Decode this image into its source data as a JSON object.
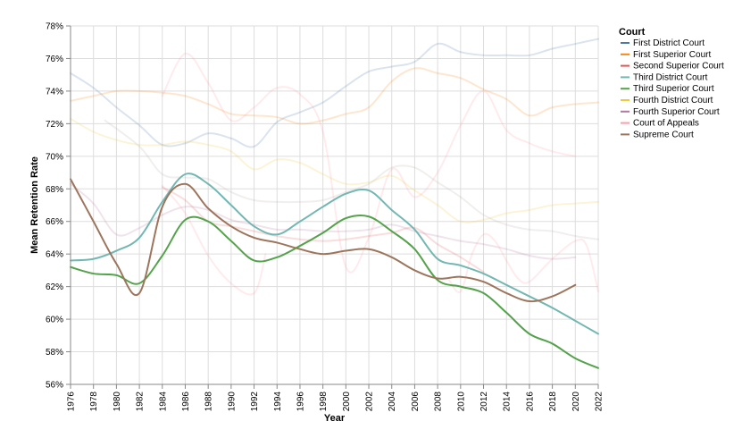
{
  "chart_data": {
    "type": "line",
    "xlabel": "Year",
    "ylabel": "Mean Retention Rate",
    "xlim": [
      1976,
      2022
    ],
    "ylim": [
      56,
      78
    ],
    "x_ticks": [
      1976,
      1978,
      1980,
      1982,
      1984,
      1986,
      1988,
      1990,
      1992,
      1994,
      1996,
      1998,
      2000,
      2002,
      2004,
      2006,
      2008,
      2010,
      2012,
      2014,
      2016,
      2018,
      2020,
      2022
    ],
    "y_ticks": [
      56,
      58,
      60,
      62,
      64,
      66,
      68,
      70,
      72,
      74,
      76,
      78
    ],
    "y_tick_labels": [
      "56%",
      "58%",
      "60%",
      "62%",
      "64%",
      "66%",
      "68%",
      "70%",
      "72%",
      "74%",
      "76%",
      "78%"
    ],
    "grid": true,
    "legend": {
      "title": "Court",
      "position": "right"
    },
    "series": [
      {
        "name": "First District Court",
        "color": "#4c78a8",
        "opacity": 0.2,
        "points": [
          [
            1976,
            75.1
          ],
          [
            1978,
            74.2
          ],
          [
            1980,
            73.0
          ],
          [
            1982,
            71.9
          ],
          [
            1984,
            70.7
          ],
          [
            1986,
            70.8
          ],
          [
            1988,
            71.4
          ],
          [
            1990,
            71.1
          ],
          [
            1992,
            70.6
          ],
          [
            1994,
            72.1
          ],
          [
            1996,
            72.7
          ],
          [
            1998,
            73.3
          ],
          [
            2000,
            74.3
          ],
          [
            2002,
            75.2
          ],
          [
            2004,
            75.5
          ],
          [
            2006,
            75.8
          ],
          [
            2008,
            76.9
          ],
          [
            2010,
            76.4
          ],
          [
            2012,
            76.2
          ],
          [
            2014,
            76.2
          ],
          [
            2016,
            76.2
          ],
          [
            2018,
            76.6
          ],
          [
            2020,
            76.9
          ],
          [
            2022,
            77.2
          ]
        ]
      },
      {
        "name": "First Superior Court",
        "color": "#f58518",
        "opacity": 0.2,
        "points": [
          [
            1976,
            73.4
          ],
          [
            1978,
            73.7
          ],
          [
            1980,
            74.0
          ],
          [
            1982,
            74.0
          ],
          [
            1984,
            73.9
          ],
          [
            1986,
            73.7
          ],
          [
            1988,
            73.2
          ],
          [
            1990,
            72.6
          ],
          [
            1992,
            72.5
          ],
          [
            1994,
            72.4
          ],
          [
            1996,
            72.0
          ],
          [
            1998,
            72.2
          ],
          [
            2000,
            72.6
          ],
          [
            2002,
            73.0
          ],
          [
            2004,
            74.6
          ],
          [
            2006,
            75.4
          ],
          [
            2008,
            75.1
          ],
          [
            2010,
            74.8
          ],
          [
            2012,
            74.1
          ],
          [
            2014,
            73.5
          ],
          [
            2016,
            72.5
          ],
          [
            2018,
            73.0
          ],
          [
            2020,
            73.2
          ],
          [
            2022,
            73.3
          ]
        ]
      },
      {
        "name": "Second Superior Court",
        "color": "#e45756",
        "opacity": 0.2,
        "points": [
          [
            1984,
            68.1
          ],
          [
            1986,
            67.3
          ],
          [
            1988,
            66.0
          ],
          [
            1990,
            65.7
          ],
          [
            1992,
            65.4
          ],
          [
            1994,
            65.1
          ],
          [
            1996,
            64.9
          ],
          [
            1998,
            64.8
          ],
          [
            2000,
            64.9
          ],
          [
            2002,
            65.1
          ],
          [
            2004,
            65.3
          ],
          [
            2006,
            65.6
          ],
          [
            2008,
            64.6
          ],
          [
            2010,
            63.8
          ],
          [
            2012,
            62.9
          ]
        ]
      },
      {
        "name": "Third District Court",
        "color": "#72b7b2",
        "opacity": 1,
        "points": [
          [
            1976,
            63.6
          ],
          [
            1978,
            63.7
          ],
          [
            1980,
            64.2
          ],
          [
            1982,
            65.0
          ],
          [
            1984,
            67.2
          ],
          [
            1986,
            68.9
          ],
          [
            1988,
            68.3
          ],
          [
            1990,
            67.0
          ],
          [
            1992,
            65.7
          ],
          [
            1994,
            65.2
          ],
          [
            1996,
            66.0
          ],
          [
            1998,
            66.9
          ],
          [
            2000,
            67.7
          ],
          [
            2002,
            67.9
          ],
          [
            2004,
            66.7
          ],
          [
            2006,
            65.5
          ],
          [
            2008,
            63.7
          ],
          [
            2010,
            63.3
          ],
          [
            2012,
            62.8
          ],
          [
            2014,
            62.1
          ],
          [
            2016,
            61.4
          ],
          [
            2018,
            60.7
          ],
          [
            2020,
            59.9
          ],
          [
            2022,
            59.1
          ]
        ]
      },
      {
        "name": "Third Superior Court",
        "color": "#54a24b",
        "opacity": 1,
        "points": [
          [
            1976,
            63.2
          ],
          [
            1978,
            62.8
          ],
          [
            1980,
            62.7
          ],
          [
            1982,
            62.2
          ],
          [
            1984,
            63.9
          ],
          [
            1986,
            66.1
          ],
          [
            1988,
            66.0
          ],
          [
            1990,
            64.8
          ],
          [
            1992,
            63.6
          ],
          [
            1994,
            63.8
          ],
          [
            1996,
            64.5
          ],
          [
            1998,
            65.3
          ],
          [
            2000,
            66.2
          ],
          [
            2002,
            66.3
          ],
          [
            2004,
            65.4
          ],
          [
            2006,
            64.3
          ],
          [
            2008,
            62.4
          ],
          [
            2010,
            62.0
          ],
          [
            2012,
            61.6
          ],
          [
            2014,
            60.4
          ],
          [
            2016,
            59.1
          ],
          [
            2018,
            58.5
          ],
          [
            2020,
            57.6
          ],
          [
            2022,
            57.0
          ]
        ]
      },
      {
        "name": "Fourth District Court",
        "color": "#eeca3b",
        "opacity": 0.2,
        "points": [
          [
            1976,
            72.3
          ],
          [
            1978,
            71.5
          ],
          [
            1980,
            71.0
          ],
          [
            1982,
            70.7
          ],
          [
            1984,
            70.7
          ],
          [
            1986,
            70.9
          ],
          [
            1988,
            70.7
          ],
          [
            1990,
            70.3
          ],
          [
            1992,
            69.2
          ],
          [
            1994,
            69.8
          ],
          [
            1996,
            69.6
          ],
          [
            1998,
            68.9
          ],
          [
            2000,
            68.3
          ],
          [
            2002,
            68.4
          ],
          [
            2004,
            68.8
          ],
          [
            2006,
            67.9
          ],
          [
            2008,
            67.0
          ],
          [
            2010,
            66.0
          ],
          [
            2012,
            66.1
          ],
          [
            2014,
            66.5
          ],
          [
            2016,
            66.7
          ],
          [
            2018,
            67.0
          ],
          [
            2020,
            67.1
          ],
          [
            2022,
            67.2
          ]
        ]
      },
      {
        "name": "Fourth Superior Court",
        "color": "#b279a2",
        "opacity": 0.2,
        "points": [
          [
            1976,
            68.3
          ],
          [
            1978,
            67.1
          ],
          [
            1980,
            65.2
          ],
          [
            1982,
            65.6
          ],
          [
            1984,
            66.4
          ],
          [
            1986,
            66.9
          ],
          [
            1988,
            66.7
          ],
          [
            1990,
            66.1
          ],
          [
            1992,
            65.8
          ],
          [
            1994,
            65.5
          ],
          [
            1996,
            65.5
          ],
          [
            1998,
            65.4
          ],
          [
            2000,
            65.4
          ],
          [
            2002,
            65.5
          ],
          [
            2004,
            65.8
          ],
          [
            2006,
            65.4
          ],
          [
            2008,
            65.1
          ],
          [
            2010,
            64.8
          ],
          [
            2012,
            64.6
          ],
          [
            2014,
            64.3
          ],
          [
            2016,
            63.9
          ],
          [
            2018,
            63.7
          ],
          [
            2020,
            63.8
          ]
        ]
      },
      {
        "name": "Court of Appeals",
        "color": "#ff9da6",
        "opacity": 0.2,
        "points": [
          [
            1984,
            73.7
          ],
          [
            1986,
            76.3
          ],
          [
            1988,
            74.5
          ],
          [
            1990,
            72.2
          ],
          [
            1992,
            73.0
          ],
          [
            1994,
            74.2
          ],
          [
            1996,
            73.8
          ],
          [
            1998,
            71.5
          ],
          [
            2000,
            63.2
          ],
          [
            2002,
            65.0
          ],
          [
            2004,
            69.2
          ],
          [
            2006,
            67.5
          ],
          [
            2008,
            69.0
          ],
          [
            2010,
            71.9
          ],
          [
            2012,
            74.0
          ],
          [
            2014,
            71.6
          ],
          [
            2016,
            70.8
          ],
          [
            2018,
            70.3
          ],
          [
            2020,
            70.0
          ]
        ]
      },
      {
        "name": "Supreme Court",
        "color": "#9d755d",
        "opacity": 1,
        "points": [
          [
            1976,
            68.6
          ],
          [
            1978,
            66.0
          ],
          [
            1980,
            63.4
          ],
          [
            1982,
            61.6
          ],
          [
            1984,
            66.9
          ],
          [
            1986,
            68.3
          ],
          [
            1988,
            66.8
          ],
          [
            1990,
            65.7
          ],
          [
            1992,
            65.0
          ],
          [
            1994,
            64.7
          ],
          [
            1996,
            64.3
          ],
          [
            1998,
            64.0
          ],
          [
            2000,
            64.2
          ],
          [
            2002,
            64.3
          ],
          [
            2004,
            63.8
          ],
          [
            2006,
            63.0
          ],
          [
            2008,
            62.5
          ],
          [
            2010,
            62.6
          ],
          [
            2012,
            62.3
          ],
          [
            2014,
            61.6
          ],
          [
            2016,
            61.1
          ],
          [
            2018,
            61.4
          ],
          [
            2020,
            62.1
          ]
        ]
      },
      {
        "name": "",
        "color": "#bab0ac",
        "opacity": 0.2,
        "points": [
          [
            1979,
            72.2
          ],
          [
            1982,
            70.6
          ],
          [
            1984,
            68.9
          ],
          [
            1986,
            68.7
          ],
          [
            1988,
            68.6
          ],
          [
            1990,
            67.8
          ],
          [
            1992,
            67.3
          ],
          [
            1994,
            67.2
          ],
          [
            1996,
            67.2
          ],
          [
            1998,
            67.3
          ],
          [
            2000,
            67.8
          ],
          [
            2002,
            68.3
          ],
          [
            2004,
            69.3
          ],
          [
            2006,
            69.3
          ],
          [
            2008,
            68.4
          ],
          [
            2010,
            67.5
          ],
          [
            2012,
            66.4
          ],
          [
            2014,
            65.8
          ],
          [
            2016,
            65.5
          ],
          [
            2018,
            65.4
          ],
          [
            2020,
            65.1
          ],
          [
            2022,
            64.9
          ]
        ]
      },
      {
        "name": "",
        "color": "#ff9da6",
        "opacity": 0.2,
        "points": [
          [
            1984,
            68.2
          ],
          [
            1986,
            66.5
          ],
          [
            1988,
            63.9
          ],
          [
            1990,
            62.2
          ],
          [
            1992,
            61.6
          ],
          [
            1993,
            64.0
          ]
        ]
      },
      {
        "name": "",
        "color": "#ff9da6",
        "opacity": 0.2,
        "points": [
          [
            2009,
            62.4
          ],
          [
            2010,
            61.7
          ],
          [
            2011,
            64.0
          ],
          [
            2012,
            65.2
          ],
          [
            2013,
            64.8
          ],
          [
            2014,
            63.6
          ],
          [
            2015,
            62.5
          ],
          [
            2016,
            62.3
          ],
          [
            2018,
            63.7
          ],
          [
            2020,
            64.8
          ],
          [
            2021,
            64.5
          ],
          [
            2022,
            61.7
          ]
        ]
      }
    ]
  }
}
